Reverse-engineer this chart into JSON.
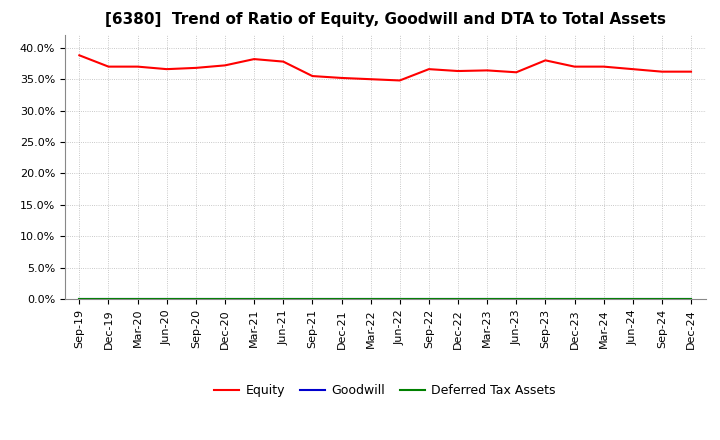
{
  "title": "[6380]  Trend of Ratio of Equity, Goodwill and DTA to Total Assets",
  "labels": [
    "Sep-19",
    "Dec-19",
    "Mar-20",
    "Jun-20",
    "Sep-20",
    "Dec-20",
    "Mar-21",
    "Jun-21",
    "Sep-21",
    "Dec-21",
    "Mar-22",
    "Jun-22",
    "Sep-22",
    "Dec-22",
    "Mar-23",
    "Jun-23",
    "Sep-23",
    "Dec-23",
    "Mar-24",
    "Jun-24",
    "Sep-24",
    "Dec-24"
  ],
  "equity": [
    0.388,
    0.37,
    0.37,
    0.366,
    0.368,
    0.372,
    0.382,
    0.378,
    0.355,
    0.352,
    0.35,
    0.348,
    0.366,
    0.363,
    0.364,
    0.361,
    0.38,
    0.37,
    0.37,
    0.366,
    0.362,
    0.362
  ],
  "goodwill": [
    0.0,
    0.0,
    0.0,
    0.0,
    0.0,
    0.0,
    0.0,
    0.0,
    0.0,
    0.0,
    0.0,
    0.0,
    0.0,
    0.0,
    0.0,
    0.0,
    0.0,
    0.0,
    0.0,
    0.0,
    0.0,
    0.0
  ],
  "dta": [
    0.0,
    0.0,
    0.0,
    0.0,
    0.0,
    0.0,
    0.0,
    0.0,
    0.0,
    0.0,
    0.0,
    0.0,
    0.0,
    0.0,
    0.0,
    0.0,
    0.0,
    0.0,
    0.0,
    0.0,
    0.0,
    0.0
  ],
  "equity_color": "#ff0000",
  "goodwill_color": "#0000cd",
  "dta_color": "#008000",
  "ylim": [
    0.0,
    0.42
  ],
  "yticks": [
    0.0,
    0.05,
    0.1,
    0.15,
    0.2,
    0.25,
    0.3,
    0.35,
    0.4
  ],
  "bg_color": "#ffffff",
  "plot_bg_color": "#ffffff",
  "grid_color": "#999999",
  "title_fontsize": 11,
  "tick_fontsize": 8,
  "legend_labels": [
    "Equity",
    "Goodwill",
    "Deferred Tax Assets"
  ]
}
